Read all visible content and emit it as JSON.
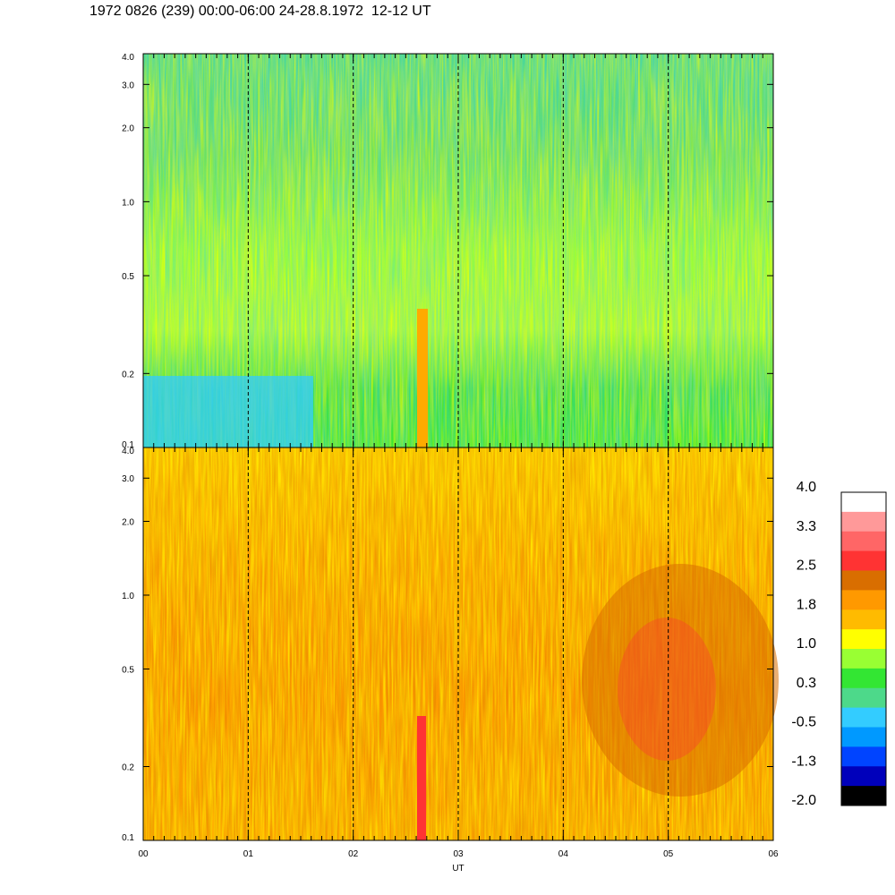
{
  "chart_data": {
    "type": "heatmap",
    "title": "1972 0826 (239) 00:00-06:00 24-28.8.1972  12-12 UT",
    "xlabel": "UT",
    "x_ticks": [
      "00",
      "01",
      "02",
      "03",
      "04",
      "05",
      "06"
    ],
    "xlim": [
      0,
      6
    ],
    "ylim": [
      0.1,
      4.0
    ],
    "y_scale": "log",
    "y_ticks": [
      {
        "value": 4.0,
        "label": "4.0"
      },
      {
        "value": 3.0,
        "label": "3.0"
      },
      {
        "value": 2.0,
        "label": "2.0"
      },
      {
        "value": 1.0,
        "label": "1.0"
      },
      {
        "value": 0.5,
        "label": "0.5"
      },
      {
        "value": 0.2,
        "label": "0.2"
      },
      {
        "value": 0.1,
        "label": "0.1"
      }
    ],
    "vertical_dashed_lines_at": [
      1,
      2,
      3,
      4,
      5
    ],
    "panels": [
      {
        "name": "upper",
        "dominant_range": [
          0.3,
          1.8
        ]
      },
      {
        "name": "lower",
        "dominant_range": [
          1.0,
          2.5
        ]
      }
    ],
    "colorbar": {
      "labels": [
        "4.0",
        "3.3",
        "2.5",
        "1.8",
        "1.0",
        "0.3",
        "-0.5",
        "-1.3",
        "-2.0"
      ],
      "colors": [
        "#ffffff",
        "#ff9999",
        "#ff6666",
        "#ff3333",
        "#d96e00",
        "#ff9900",
        "#ffbb00",
        "#ffff00",
        "#99ff33",
        "#33e633",
        "#4dd98a",
        "#33ccff",
        "#0099ff",
        "#0044ff",
        "#0000bb",
        "#000000"
      ]
    }
  }
}
